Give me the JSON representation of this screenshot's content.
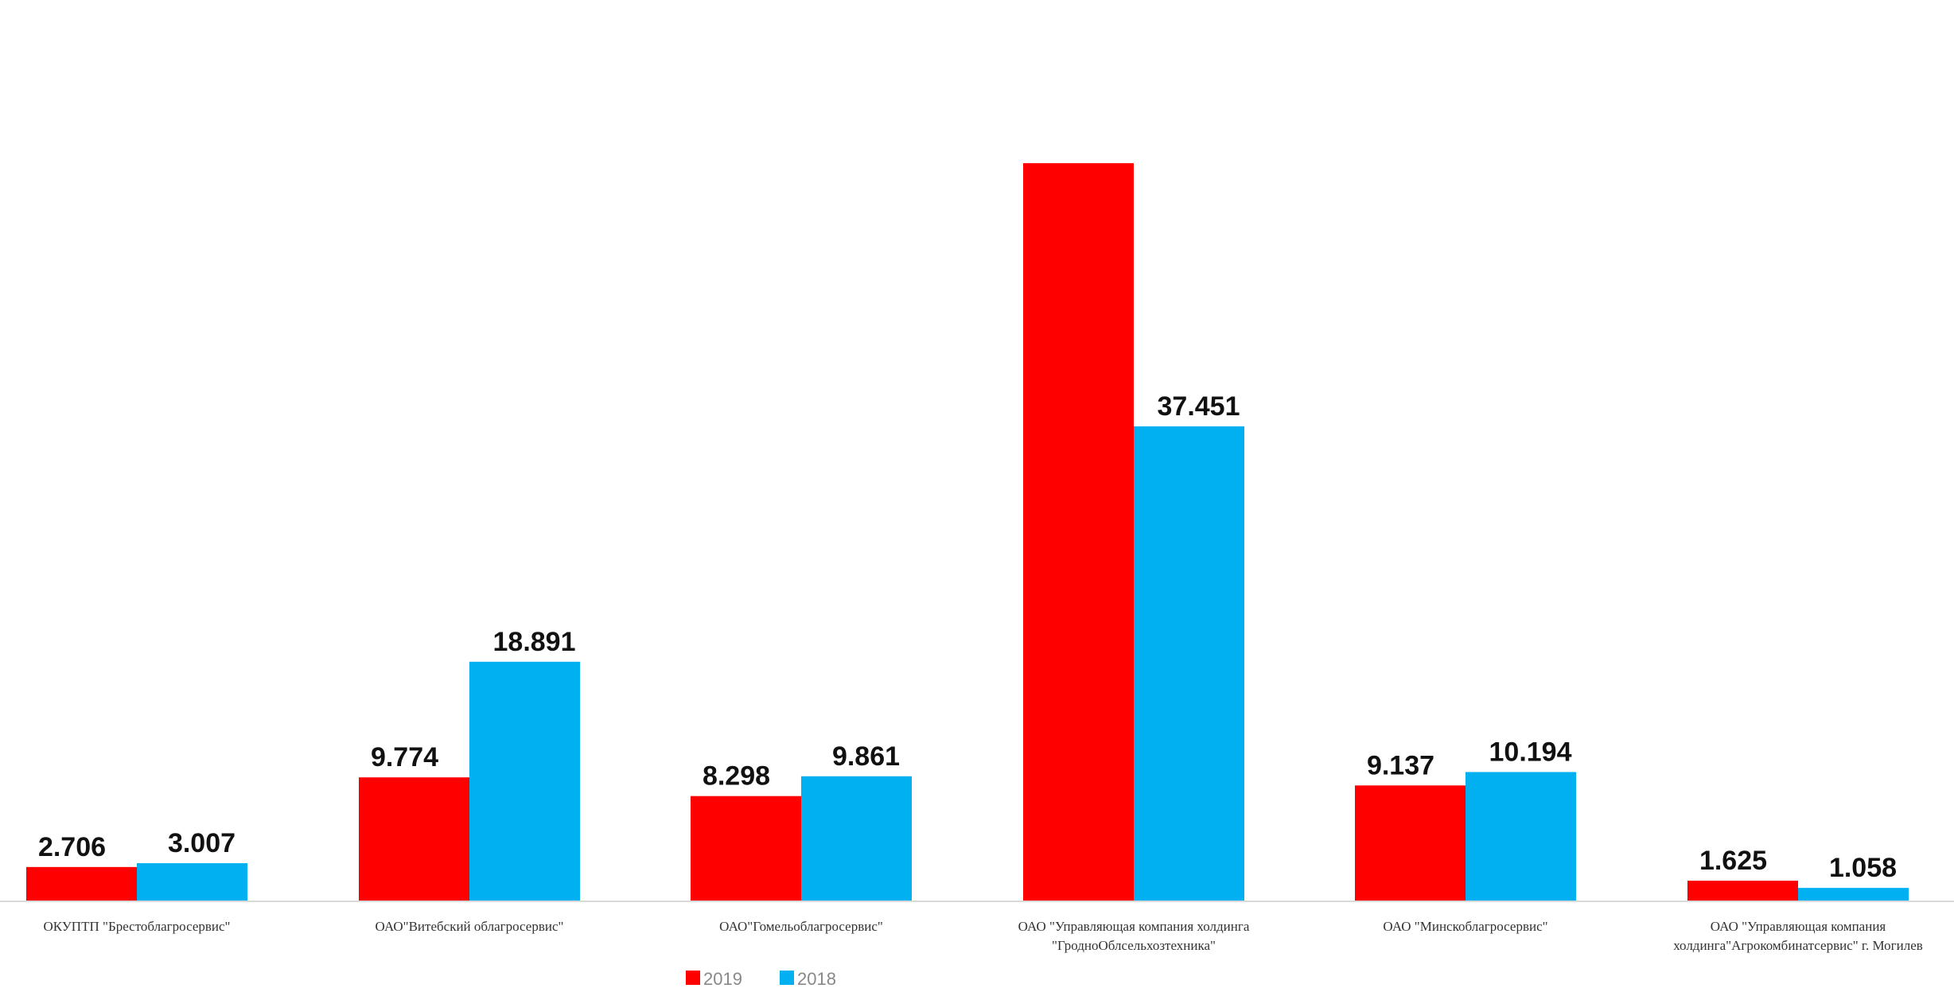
{
  "chart_data": {
    "type": "bar",
    "title": "",
    "xlabel": "",
    "ylabel": "",
    "ylim": [
      0,
      70
    ],
    "grid": false,
    "legend_position": "bottom-center",
    "categories": [
      [
        "ОКУПТП \"Брестоблагросервис\""
      ],
      [
        "ОАО\"Витебский облагросервис\""
      ],
      [
        "ОАО\"Гомельоблагросервис\""
      ],
      [
        "ОАО \"Управляющая компания холдинга",
        "\"ГродноОблсельхозтехника\""
      ],
      [
        "ОАО \"Минскоблагросервис\""
      ],
      [
        "ОАО \"Управляющая компания",
        "холдинга\"Агрокомбинатсервис\" г. Могилев"
      ]
    ],
    "series": [
      {
        "name": "2019",
        "color": "#ff0000",
        "values": [
          2.706,
          9.774,
          8.298,
          58.2,
          9.137,
          1.625
        ],
        "labels": [
          "2.706",
          "9.774",
          "8.298",
          "",
          "9.137",
          "1.625"
        ]
      },
      {
        "name": "2018",
        "color": "#00b0f0",
        "values": [
          3.007,
          18.891,
          9.861,
          37.451,
          10.194,
          1.058
        ],
        "labels": [
          "3.007",
          "18.891",
          "9.861",
          "37.451",
          "10.194",
          "1.058"
        ]
      }
    ]
  }
}
